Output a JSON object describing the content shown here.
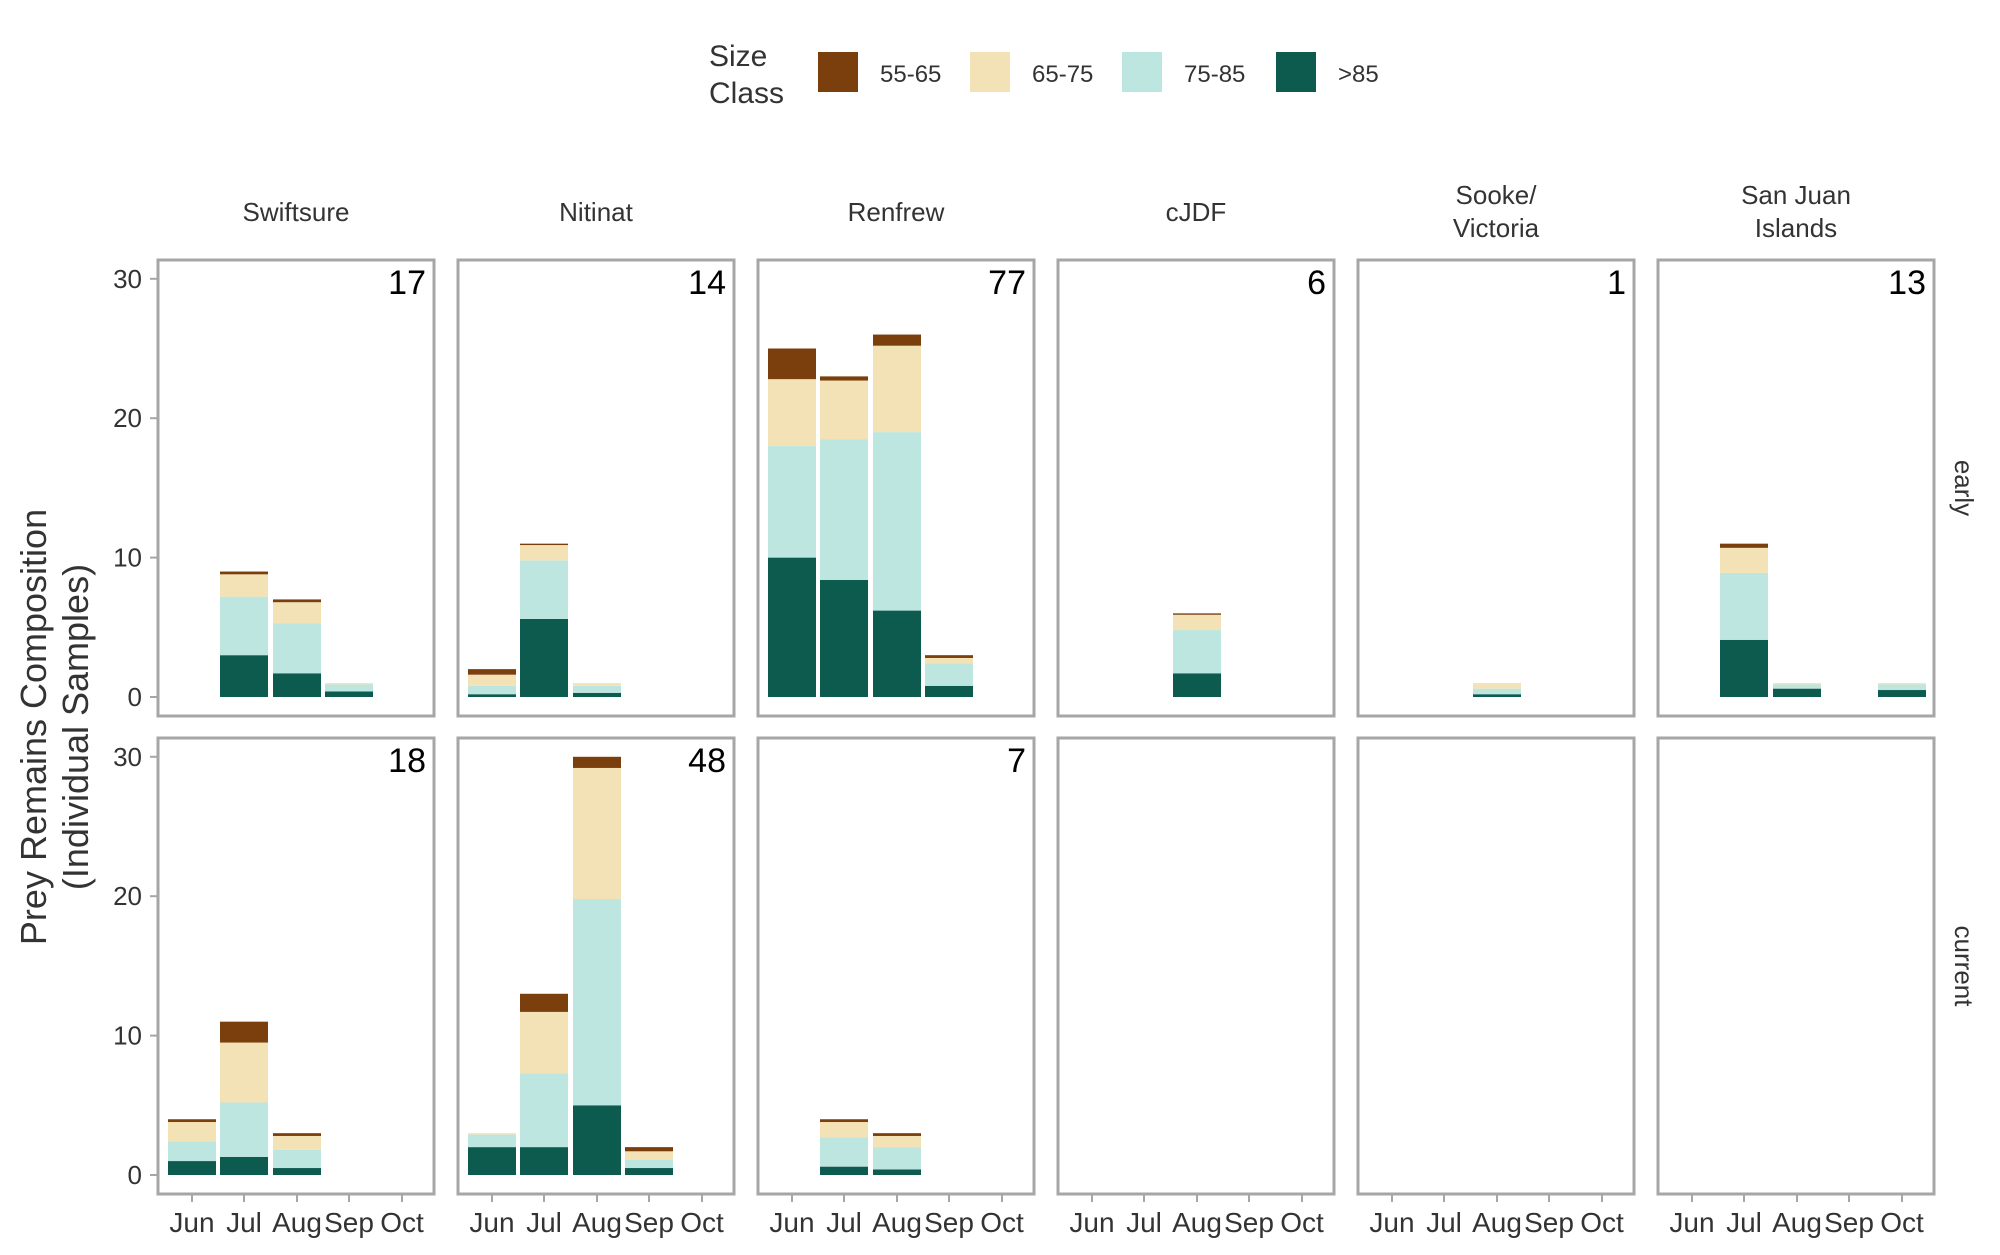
{
  "chart_data": {
    "type": "bar",
    "stacked": true,
    "faceted": true,
    "legend": {
      "title_lines": [
        "Size",
        "Class"
      ],
      "position": "top",
      "entries": [
        {
          "label": "55-65",
          "color": "#7B3F0E"
        },
        {
          "label": "65-75",
          "color": "#F3E2B6"
        },
        {
          "label": "75-85",
          "color": "#BDE6E0"
        },
        {
          "label": ">85",
          "color": "#0D5A4F"
        }
      ]
    },
    "ylabel_lines": [
      "Prey Remains Composition",
      "(Individual Samples)"
    ],
    "ylim": [
      0,
      30
    ],
    "yticks": [
      0,
      10,
      20,
      30
    ],
    "x_categories": [
      "Jun",
      "Jul",
      "Aug",
      "Sep",
      "Oct"
    ],
    "columns": [
      {
        "key": "swiftsure",
        "lines": [
          "Swiftsure"
        ]
      },
      {
        "key": "nitinat",
        "lines": [
          "Nitinat"
        ]
      },
      {
        "key": "renfrew",
        "lines": [
          "Renfrew"
        ]
      },
      {
        "key": "cjdf",
        "lines": [
          "cJDF"
        ]
      },
      {
        "key": "sooke",
        "lines": [
          "Sooke/",
          "Victoria"
        ]
      },
      {
        "key": "sanjuan",
        "lines": [
          "San Juan",
          "Islands"
        ]
      }
    ],
    "rows": [
      {
        "key": "early",
        "label": "early"
      },
      {
        "key": "current",
        "label": "current"
      }
    ],
    "panels": [
      {
        "row": "early",
        "column": "swiftsure",
        "count": "17",
        "bars": [
          {
            "x": "Jul",
            "values": [
              0.2,
              1.6,
              4.2,
              3.0
            ]
          },
          {
            "x": "Aug",
            "values": [
              0.2,
              1.5,
              3.6,
              1.7
            ]
          },
          {
            "x": "Sep",
            "values": [
              0,
              0.1,
              0.5,
              0.4
            ]
          }
        ]
      },
      {
        "row": "early",
        "column": "nitinat",
        "count": "14",
        "bars": [
          {
            "x": "Jun",
            "values": [
              0.4,
              0.8,
              0.6,
              0.2
            ]
          },
          {
            "x": "Jul",
            "values": [
              0.1,
              1.1,
              4.2,
              5.6
            ]
          },
          {
            "x": "Aug",
            "values": [
              0,
              0.2,
              0.5,
              0.3
            ]
          }
        ]
      },
      {
        "row": "early",
        "column": "renfrew",
        "count": "77",
        "bars": [
          {
            "x": "Jun",
            "values": [
              2.2,
              4.8,
              8.0,
              10.0
            ]
          },
          {
            "x": "Jul",
            "values": [
              0.3,
              4.2,
              10.1,
              8.4
            ]
          },
          {
            "x": "Aug",
            "values": [
              0.8,
              6.2,
              12.8,
              6.2
            ]
          },
          {
            "x": "Sep",
            "values": [
              0.2,
              0.4,
              1.6,
              0.8
            ]
          }
        ]
      },
      {
        "row": "early",
        "column": "cjdf",
        "count": "6",
        "bars": [
          {
            "x": "Aug",
            "values": [
              0.1,
              1.1,
              3.1,
              1.7
            ]
          }
        ]
      },
      {
        "row": "early",
        "column": "sooke",
        "count": "1",
        "bars": [
          {
            "x": "Aug",
            "values": [
              0,
              0.4,
              0.4,
              0.2
            ]
          }
        ]
      },
      {
        "row": "early",
        "column": "sanjuan",
        "count": "13",
        "bars": [
          {
            "x": "Jul",
            "values": [
              0.3,
              1.8,
              4.8,
              4.1
            ]
          },
          {
            "x": "Aug",
            "values": [
              0,
              0.1,
              0.3,
              0.6
            ]
          },
          {
            "x": "Oct",
            "values": [
              0,
              0.1,
              0.4,
              0.5
            ]
          }
        ]
      },
      {
        "row": "current",
        "column": "swiftsure",
        "count": "18",
        "bars": [
          {
            "x": "Jun",
            "values": [
              0.2,
              1.4,
              1.4,
              1.0
            ]
          },
          {
            "x": "Jul",
            "values": [
              1.5,
              4.3,
              3.9,
              1.3
            ]
          },
          {
            "x": "Aug",
            "values": [
              0.2,
              1.0,
              1.3,
              0.5
            ]
          }
        ]
      },
      {
        "row": "current",
        "column": "nitinat",
        "count": "48",
        "bars": [
          {
            "x": "Jun",
            "values": [
              0,
              0.1,
              0.9,
              2.0
            ]
          },
          {
            "x": "Jul",
            "values": [
              1.3,
              4.4,
              5.3,
              2.0
            ]
          },
          {
            "x": "Aug",
            "values": [
              0.8,
              9.4,
              14.8,
              5.0
            ]
          },
          {
            "x": "Sep",
            "values": [
              0.3,
              0.6,
              0.6,
              0.5
            ]
          }
        ]
      },
      {
        "row": "current",
        "column": "renfrew",
        "count": "7",
        "bars": [
          {
            "x": "Jul",
            "values": [
              0.2,
              1.1,
              2.1,
              0.6
            ]
          },
          {
            "x": "Aug",
            "values": [
              0.2,
              0.8,
              1.6,
              0.4
            ]
          }
        ]
      },
      {
        "row": "current",
        "column": "cjdf",
        "count": "",
        "bars": []
      },
      {
        "row": "current",
        "column": "sooke",
        "count": "",
        "bars": []
      },
      {
        "row": "current",
        "column": "sanjuan",
        "count": "",
        "bars": []
      }
    ]
  }
}
